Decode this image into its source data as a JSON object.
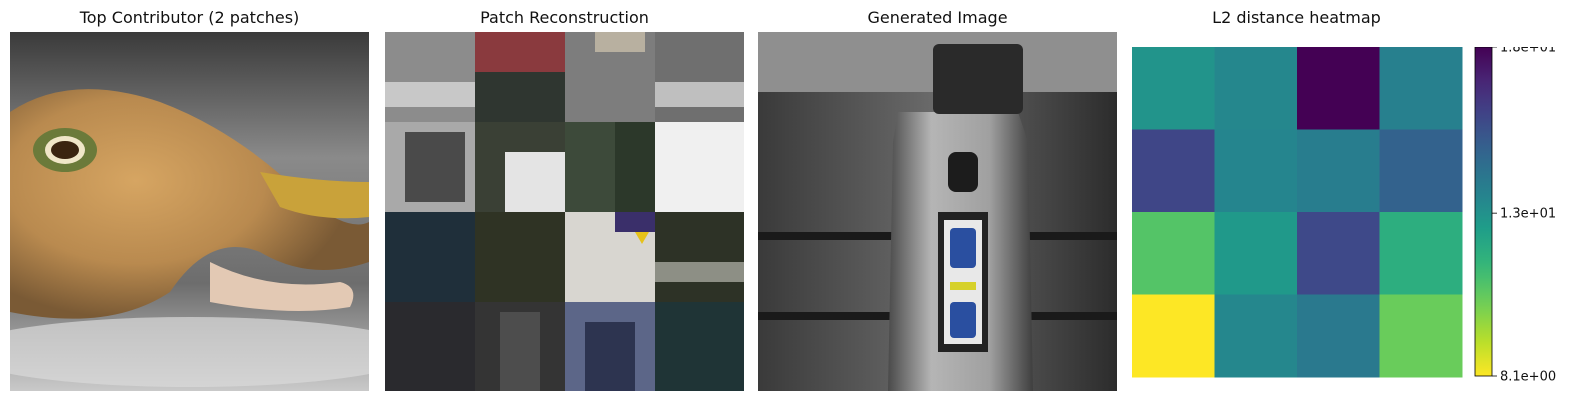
{
  "panels": {
    "contributor_title": "Top Contributor (2 patches)",
    "reconstruction_title": "Patch Reconstruction",
    "generated_title": "Generated Image"
  },
  "chart_data": {
    "type": "heatmap",
    "title": "L2 distance heatmap",
    "rows": 4,
    "cols": 4,
    "values": [
      [
        12.9,
        13.4,
        18.0,
        13.7
      ],
      [
        15.9,
        13.5,
        13.8,
        14.9
      ],
      [
        10.8,
        12.7,
        15.8,
        11.8
      ],
      [
        8.1,
        13.4,
        14.0,
        10.4
      ]
    ],
    "colorbar": {
      "min": 8.1,
      "max": 18.0,
      "ticks": [
        18.0,
        13.0,
        8.1
      ],
      "tick_labels": [
        "1.8e+01",
        "1.3e+01",
        "8.1e+00"
      ],
      "colormap": "viridis_r"
    },
    "grid": false
  },
  "colors": {
    "viridis": [
      "#440154",
      "#482878",
      "#3e4989",
      "#31688e",
      "#26828e",
      "#1f9e89",
      "#35b779",
      "#6ece58",
      "#b5de2b",
      "#fde725"
    ]
  }
}
